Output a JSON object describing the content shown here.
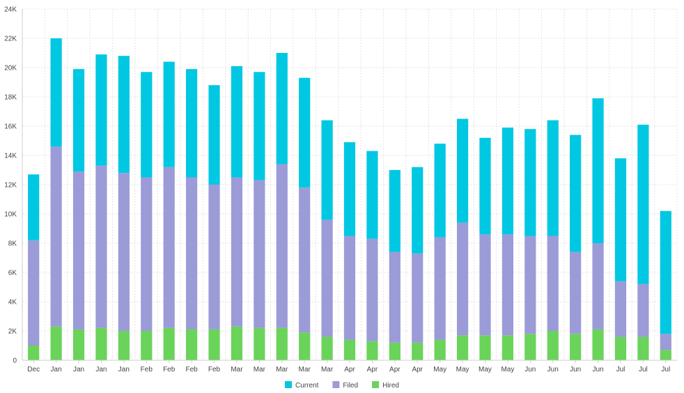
{
  "chart_data": {
    "type": "bar",
    "stacked": true,
    "title": "",
    "xlabel": "",
    "ylabel": "",
    "ylim": [
      0,
      24000
    ],
    "y_ticks": [
      0,
      2000,
      4000,
      6000,
      8000,
      10000,
      12000,
      14000,
      16000,
      18000,
      20000,
      22000,
      24000
    ],
    "y_tick_labels": [
      "0",
      "2K",
      "4K",
      "6K",
      "8K",
      "10K",
      "12K",
      "14K",
      "16K",
      "18K",
      "20K",
      "22K",
      "24K"
    ],
    "grid": true,
    "legend_position": "bottom-center",
    "categories": [
      "Dec",
      "Jan",
      "Jan",
      "Jan",
      "Jan",
      "Feb",
      "Feb",
      "Feb",
      "Feb",
      "Mar",
      "Mar",
      "Mar",
      "Mar",
      "Mar",
      "Apr",
      "Apr",
      "Apr",
      "Apr",
      "May",
      "May",
      "May",
      "May",
      "Jun",
      "Jun",
      "Jun",
      "Jun",
      "Jul",
      "Jul",
      "Jul"
    ],
    "series": [
      {
        "name": "Hired",
        "color": "#6ad35a",
        "values": [
          1000,
          2300,
          2100,
          2200,
          2000,
          2000,
          2200,
          2100,
          2100,
          2300,
          2200,
          2200,
          1900,
          1600,
          1400,
          1300,
          1200,
          1200,
          1400,
          1700,
          1700,
          1700,
          1800,
          2000,
          1800,
          2100,
          1600,
          1600,
          700
        ]
      },
      {
        "name": "Filed",
        "color": "#9b9bd8",
        "values": [
          7200,
          12300,
          10800,
          11100,
          10800,
          10500,
          11000,
          10400,
          9900,
          10200,
          10100,
          11200,
          9900,
          8000,
          7100,
          7000,
          6200,
          6100,
          7000,
          7700,
          6900,
          6900,
          6700,
          6500,
          5600,
          5900,
          3800,
          3600,
          1100
        ]
      },
      {
        "name": "Current",
        "color": "#00c8e2",
        "values": [
          4500,
          7400,
          7000,
          7600,
          8000,
          7200,
          7200,
          7400,
          6800,
          7600,
          7400,
          7600,
          7500,
          6800,
          6400,
          6000,
          5600,
          5900,
          6400,
          7100,
          6600,
          7300,
          7300,
          7900,
          8000,
          9900,
          8400,
          10900,
          8400
        ]
      }
    ]
  },
  "legend": {
    "items": [
      {
        "label": "Current",
        "color": "#00c8e2"
      },
      {
        "label": "Filed",
        "color": "#9b9bd8"
      },
      {
        "label": "Hired",
        "color": "#6ad35a"
      }
    ]
  },
  "colors": {
    "grid": "#e3e3e3",
    "axis": "#cccccc",
    "text": "#444444"
  }
}
